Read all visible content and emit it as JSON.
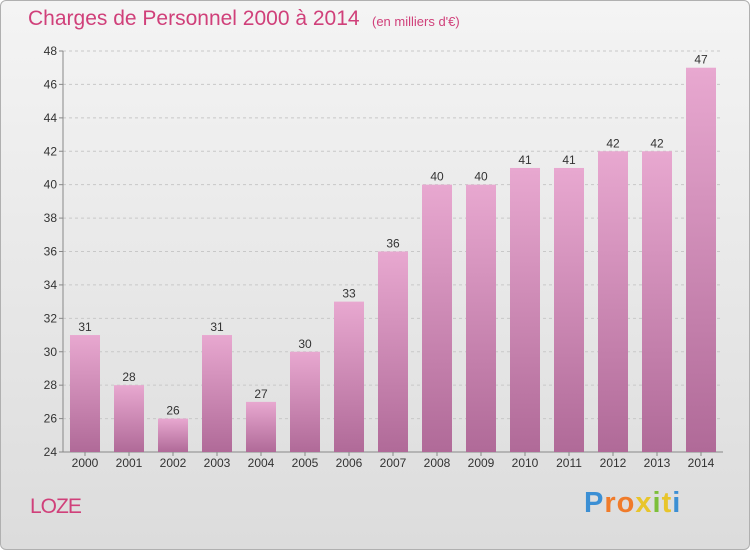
{
  "header": {
    "title": "Charges de Personnel 2000 à 2014",
    "subtitle": "(en milliers d'€)"
  },
  "footer": {
    "place": "LOZE",
    "logo_text": "Proxiti"
  },
  "colors": {
    "accent": "#d0407a",
    "bar_top": "#e8a8d0",
    "bar_bottom": "#b06a98"
  },
  "chart_data": {
    "type": "bar",
    "title": "Charges de Personnel 2000 à 2014",
    "subtitle": "(en milliers d'€)",
    "categories": [
      "2000",
      "2001",
      "2002",
      "2003",
      "2004",
      "2005",
      "2006",
      "2007",
      "2008",
      "2009",
      "2010",
      "2011",
      "2012",
      "2013",
      "2014"
    ],
    "values": [
      31,
      28,
      26,
      31,
      27,
      30,
      33,
      36,
      40,
      40,
      41,
      41,
      42,
      42,
      47
    ],
    "ylim": [
      24,
      48
    ],
    "yticks": [
      24,
      26,
      28,
      30,
      32,
      34,
      36,
      38,
      40,
      42,
      44,
      46,
      48
    ],
    "grid": true,
    "data_labels": true,
    "legend": "none"
  }
}
